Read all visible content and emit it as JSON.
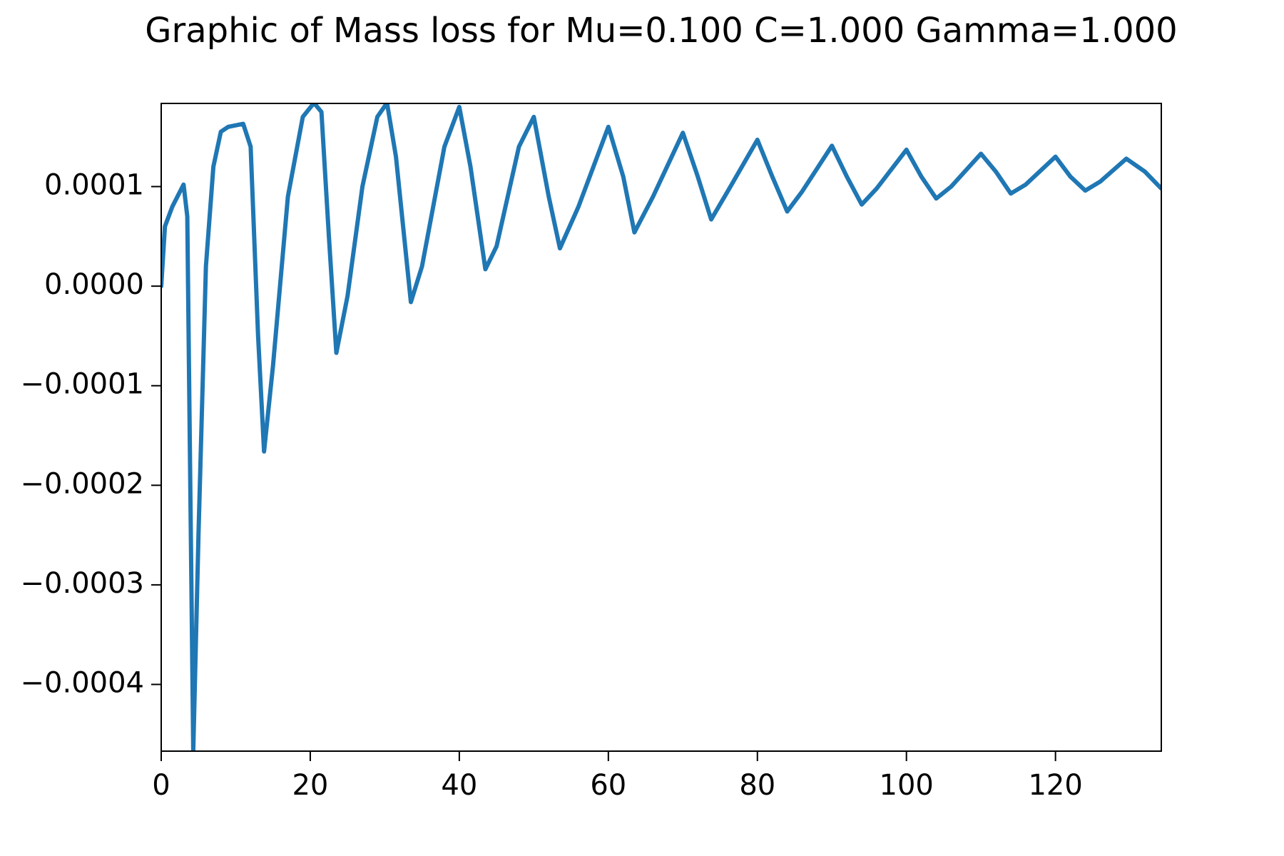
{
  "chart_data": {
    "type": "line",
    "title": "Graphic of Mass loss for Mu=0.100 C=1.000 Gamma=1.000",
    "x": [
      0,
      0.5,
      1.5,
      3,
      3.5,
      4.3,
      5,
      6,
      7,
      8,
      9,
      11,
      12,
      13,
      13.8,
      15,
      17,
      19,
      20.5,
      21.5,
      22.5,
      23.5,
      25,
      27,
      29,
      30.3,
      31.5,
      33.5,
      35,
      38,
      40,
      41.5,
      43.5,
      45,
      48,
      50,
      52,
      53.5,
      56,
      60,
      62,
      63.5,
      66,
      70,
      72,
      73.8,
      76,
      80,
      82,
      84,
      86,
      90,
      92,
      94,
      96,
      100,
      102,
      104,
      106,
      110,
      112,
      114,
      116,
      120,
      122,
      124,
      126,
      129.5,
      132,
      134.2
    ],
    "series": [
      {
        "name": "Mass loss",
        "color": "#1f77b4",
        "values": [
          0,
          6e-05,
          8e-05,
          0.000102,
          7e-05,
          -0.000467,
          -0.00025,
          2e-05,
          0.00012,
          0.000155,
          0.00016,
          0.000163,
          0.00014,
          -5e-05,
          -0.000166,
          -8e-05,
          9e-05,
          0.00017,
          0.000184,
          0.000175,
          5e-05,
          -6.7e-05,
          -1e-05,
          0.0001,
          0.00017,
          0.000184,
          0.00013,
          -1.6e-05,
          2e-05,
          0.00014,
          0.00018,
          0.00012,
          1.7e-05,
          4e-05,
          0.00014,
          0.00017,
          9e-05,
          3.8e-05,
          8e-05,
          0.00016,
          0.00011,
          5.4e-05,
          9e-05,
          0.000154,
          0.00011,
          6.7e-05,
          9.5e-05,
          0.000147,
          0.00011,
          7.5e-05,
          9.5e-05,
          0.000141,
          0.00011,
          8.2e-05,
          9.8e-05,
          0.000137,
          0.00011,
          8.8e-05,
          0.0001,
          0.000133,
          0.000115,
          9.3e-05,
          0.000102,
          0.00013,
          0.00011,
          9.6e-05,
          0.000105,
          0.000128,
          0.000115,
          9.8e-05
        ]
      }
    ],
    "xlim": [
      0,
      134.2
    ],
    "xticks": [
      0,
      20,
      40,
      60,
      80,
      100,
      120
    ],
    "ylim": [
      -0.000467,
      0.0001835
    ],
    "yticks": [
      {
        "value": -0.0004,
        "label": "−0.0004"
      },
      {
        "value": -0.0003,
        "label": "−0.0003"
      },
      {
        "value": -0.0002,
        "label": "−0.0002"
      },
      {
        "value": -0.0001,
        "label": "−0.0001"
      },
      {
        "value": 0,
        "label": "0.0000"
      },
      {
        "value": 0.0001,
        "label": "0.0001"
      }
    ],
    "grid": false
  }
}
